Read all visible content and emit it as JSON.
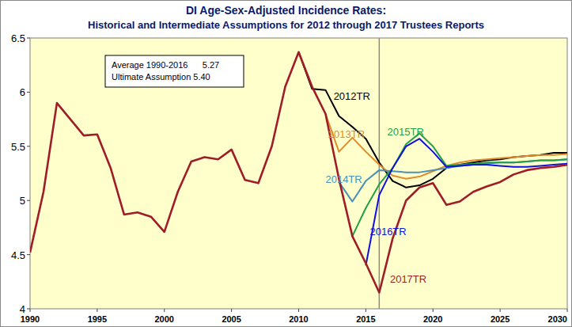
{
  "chart_data": {
    "type": "line",
    "title": "DI Age-Sex-Adjusted Incidence Rates:",
    "subtitle": "Historical and Intermediate Assumptions for 2012 through 2017 Trustees Reports",
    "annotations": [
      "Average 1990-2016      5.27",
      "Ultimate Assumption 5.40"
    ],
    "vline_x": 2016,
    "x": [
      1990,
      1991,
      1992,
      1993,
      1994,
      1995,
      1996,
      1997,
      1998,
      1999,
      2000,
      2001,
      2002,
      2003,
      2004,
      2005,
      2006,
      2007,
      2008,
      2009,
      2010,
      2011,
      2012,
      2013,
      2014,
      2015,
      2016,
      2017,
      2018,
      2019,
      2020,
      2021,
      2022,
      2023,
      2024,
      2025,
      2026,
      2027,
      2028,
      2029,
      2030
    ],
    "xlim": [
      1990,
      2030
    ],
    "xticks": [
      1990,
      1995,
      2000,
      2005,
      2010,
      2015,
      2020,
      2025,
      2030
    ],
    "ylim": [
      4,
      6.5
    ],
    "yticks": [
      4,
      4.5,
      5,
      5.5,
      6,
      6.5
    ],
    "grid": false,
    "series": [
      {
        "name": "2012TR",
        "color": "#000000",
        "values": [
          null,
          null,
          null,
          null,
          null,
          null,
          null,
          null,
          null,
          null,
          null,
          null,
          null,
          null,
          null,
          null,
          null,
          null,
          null,
          null,
          6.37,
          6.03,
          6.02,
          5.78,
          5.68,
          5.57,
          5.35,
          5.18,
          5.12,
          5.14,
          5.2,
          5.3,
          5.33,
          5.35,
          5.37,
          5.38,
          5.4,
          5.41,
          5.42,
          5.44,
          5.44
        ]
      },
      {
        "name": "2013TR",
        "color": "#e08a30",
        "values": [
          null,
          null,
          null,
          null,
          null,
          null,
          null,
          null,
          null,
          null,
          null,
          null,
          null,
          null,
          null,
          null,
          null,
          null,
          null,
          null,
          null,
          null,
          5.8,
          5.45,
          5.58,
          5.45,
          5.33,
          5.23,
          5.2,
          5.22,
          5.27,
          5.32,
          5.35,
          5.37,
          5.38,
          5.39,
          5.4,
          5.41,
          5.42,
          5.42,
          5.43
        ]
      },
      {
        "name": "2014TR",
        "color": "#4a90b8",
        "values": [
          null,
          null,
          null,
          null,
          null,
          null,
          null,
          null,
          null,
          null,
          null,
          null,
          null,
          null,
          null,
          null,
          null,
          null,
          null,
          null,
          null,
          null,
          null,
          5.17,
          4.99,
          5.18,
          5.28,
          5.27,
          5.26,
          5.26,
          5.28,
          5.3,
          5.32,
          5.33,
          5.34,
          5.35,
          5.35,
          5.36,
          5.37,
          5.37,
          5.38
        ]
      },
      {
        "name": "2015TR",
        "color": "#22a045",
        "values": [
          null,
          null,
          null,
          null,
          null,
          null,
          null,
          null,
          null,
          null,
          null,
          null,
          null,
          null,
          null,
          null,
          null,
          null,
          null,
          null,
          null,
          null,
          null,
          null,
          4.67,
          4.93,
          5.15,
          5.3,
          5.52,
          5.62,
          5.5,
          5.32,
          5.33,
          5.34,
          5.35,
          5.35,
          5.35,
          5.36,
          5.37,
          5.37,
          5.38
        ]
      },
      {
        "name": "2016TR",
        "color": "#1010e0",
        "values": [
          null,
          null,
          null,
          null,
          null,
          null,
          null,
          null,
          null,
          null,
          null,
          null,
          null,
          null,
          null,
          null,
          null,
          null,
          null,
          null,
          null,
          null,
          null,
          null,
          null,
          4.4,
          5.05,
          5.3,
          5.5,
          5.57,
          5.45,
          5.31,
          5.32,
          5.33,
          5.33,
          5.32,
          5.31,
          5.31,
          5.32,
          5.33,
          5.34
        ]
      },
      {
        "name": "2017TR",
        "color": "#a01c28",
        "values": [
          4.52,
          5.08,
          5.9,
          5.75,
          5.6,
          5.61,
          5.3,
          4.87,
          4.89,
          4.85,
          4.71,
          5.08,
          5.36,
          5.4,
          5.38,
          5.47,
          5.19,
          5.16,
          5.5,
          6.05,
          6.37,
          6.05,
          5.8,
          5.2,
          4.67,
          4.42,
          4.15,
          4.65,
          5.0,
          5.12,
          5.16,
          4.96,
          4.99,
          5.08,
          5.13,
          5.17,
          5.24,
          5.28,
          5.3,
          5.31,
          5.33
        ]
      }
    ]
  }
}
